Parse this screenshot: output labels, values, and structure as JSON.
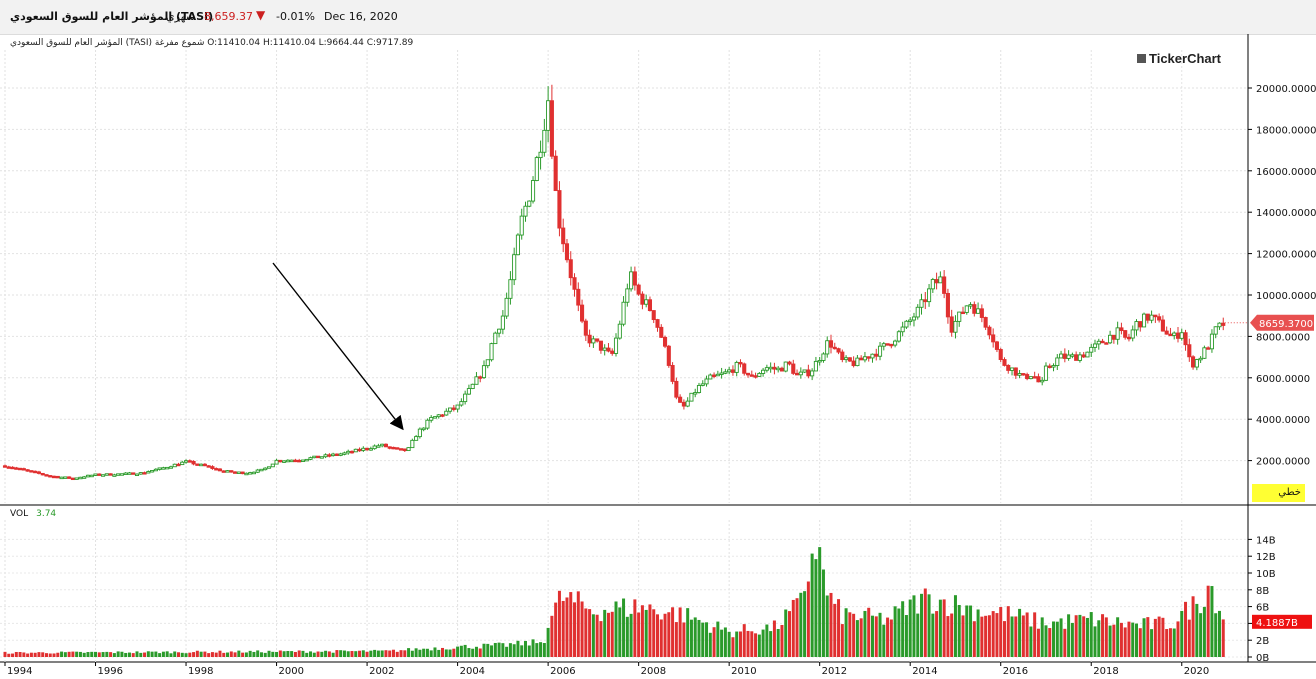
{
  "header": {
    "instrument": "المؤشر العام للسوق السعودي  (TASI)",
    "period": "شهري",
    "last_price": "8,659.37",
    "change": "-0.01%",
    "date": "Dec 16, 2020",
    "change_color": "#cc2020"
  },
  "ohlc_line": "المؤشر العام للسوق السعودي (TASI) شموع مفرغة O:11410.04  H:11410.04  L:9664.44  C:9717.89",
  "logo": "TickerChart",
  "mode_badge": "خطي",
  "volume": {
    "label": "VOL",
    "value": "3.74",
    "current_label": "4.1887B"
  },
  "price_label": "8659.3700",
  "colors": {
    "up": "#2a9a2a",
    "down": "#e03030",
    "price_tag": "#e85050"
  },
  "chart_data": [
    {
      "type": "candlestick",
      "title": "",
      "x_ticks": [
        "1994",
        "1996",
        "1998",
        "2000",
        "2002",
        "2004",
        "2006",
        "2008",
        "2010",
        "2012",
        "2014",
        "2016",
        "2018",
        "2020"
      ],
      "x_range": [
        1994.0,
        2020.95
      ],
      "ylim": [
        0,
        21000
      ],
      "y_ticks": [
        "2000.0000",
        "4000.0000",
        "6000.0000",
        "8000.0000",
        "10000.0000",
        "12000.0000",
        "14000.0000",
        "16000.0000",
        "18000.0000",
        "20000.0000"
      ],
      "grid": true,
      "close_anchors": [
        [
          1994.0,
          1750
        ],
        [
          1994.6,
          1450
        ],
        [
          1995.0,
          1250
        ],
        [
          1995.5,
          1150
        ],
        [
          1996.0,
          1320
        ],
        [
          1996.5,
          1350
        ],
        [
          1997.0,
          1400
        ],
        [
          1997.5,
          1650
        ],
        [
          1998.0,
          1950
        ],
        [
          1998.4,
          1750
        ],
        [
          1998.8,
          1500
        ],
        [
          1999.3,
          1400
        ],
        [
          1999.7,
          1550
        ],
        [
          2000.0,
          2000
        ],
        [
          2000.5,
          2050
        ],
        [
          2001.0,
          2200
        ],
        [
          2001.5,
          2350
        ],
        [
          2002.0,
          2600
        ],
        [
          2002.3,
          2750
        ],
        [
          2002.7,
          2500
        ],
        [
          2002.9,
          2500
        ],
        [
          2003.1,
          3300
        ],
        [
          2003.4,
          4000
        ],
        [
          2003.8,
          4400
        ],
        [
          2004.0,
          4600
        ],
        [
          2004.3,
          5500
        ],
        [
          2004.6,
          6500
        ],
        [
          2004.8,
          8000
        ],
        [
          2005.0,
          9000
        ],
        [
          2005.2,
          11000
        ],
        [
          2005.4,
          13500
        ],
        [
          2005.6,
          15000
        ],
        [
          2005.8,
          17000
        ],
        [
          2006.0,
          19500
        ],
        [
          2006.2,
          14000
        ],
        [
          2006.4,
          12000
        ],
        [
          2006.6,
          10000
        ],
        [
          2006.8,
          8000
        ],
        [
          2007.1,
          7600
        ],
        [
          2007.4,
          7000
        ],
        [
          2007.6,
          8800
        ],
        [
          2007.8,
          11000
        ],
        [
          2008.0,
          10000
        ],
        [
          2008.3,
          9200
        ],
        [
          2008.5,
          8000
        ],
        [
          2008.7,
          6500
        ],
        [
          2008.85,
          4800
        ],
        [
          2009.0,
          4600
        ],
        [
          2009.3,
          5500
        ],
        [
          2009.6,
          6000
        ],
        [
          2009.9,
          6200
        ],
        [
          2010.2,
          6600
        ],
        [
          2010.5,
          6000
        ],
        [
          2010.8,
          6500
        ],
        [
          2011.1,
          6400
        ],
        [
          2011.3,
          6700
        ],
        [
          2011.5,
          6100
        ],
        [
          2011.8,
          6300
        ],
        [
          2012.0,
          7000
        ],
        [
          2012.2,
          7800
        ],
        [
          2012.5,
          6800
        ],
        [
          2012.8,
          6700
        ],
        [
          2013.0,
          7000
        ],
        [
          2013.3,
          7300
        ],
        [
          2013.6,
          7800
        ],
        [
          2013.9,
          8500
        ],
        [
          2014.2,
          9300
        ],
        [
          2014.5,
          10500
        ],
        [
          2014.7,
          10800
        ],
        [
          2014.9,
          8400
        ],
        [
          2015.1,
          9000
        ],
        [
          2015.3,
          9700
        ],
        [
          2015.6,
          8900
        ],
        [
          2015.8,
          8100
        ],
        [
          2016.0,
          6800
        ],
        [
          2016.2,
          6500
        ],
        [
          2016.5,
          6000
        ],
        [
          2016.7,
          6200
        ],
        [
          2016.9,
          5600
        ],
        [
          2017.0,
          6400
        ],
        [
          2017.3,
          7000
        ],
        [
          2017.6,
          7000
        ],
        [
          2017.9,
          7200
        ],
        [
          2018.1,
          7500
        ],
        [
          2018.4,
          8000
        ],
        [
          2018.6,
          8200
        ],
        [
          2018.8,
          7800
        ],
        [
          2019.0,
          8600
        ],
        [
          2019.3,
          9000
        ],
        [
          2019.5,
          8600
        ],
        [
          2019.8,
          7900
        ],
        [
          2020.0,
          8300
        ],
        [
          2020.2,
          6600
        ],
        [
          2020.4,
          7000
        ],
        [
          2020.6,
          7600
        ],
        [
          2020.75,
          8300
        ],
        [
          2020.95,
          8659
        ]
      ]
    },
    {
      "type": "bar",
      "title": "VOL",
      "ylim": [
        0,
        15
      ],
      "y_ticks": [
        "0B",
        "2B",
        "4B",
        "6B",
        "8B",
        "10B",
        "12B",
        "14B"
      ],
      "volume_anchors_billions": [
        [
          1994.0,
          0.5
        ],
        [
          2002.5,
          0.7
        ],
        [
          2003.0,
          0.9
        ],
        [
          2004.0,
          1.2
        ],
        [
          2005.0,
          1.4
        ],
        [
          2005.9,
          1.8
        ],
        [
          2006.0,
          4.0
        ],
        [
          2006.3,
          7.2
        ],
        [
          2007.0,
          5.5
        ],
        [
          2008.0,
          6.0
        ],
        [
          2009.0,
          5.0
        ],
        [
          2010.0,
          3.0
        ],
        [
          2011.0,
          3.5
        ],
        [
          2011.6,
          6.5
        ],
        [
          2011.9,
          14.0
        ],
        [
          2012.2,
          7.0
        ],
        [
          2012.5,
          5.0
        ],
        [
          2013.5,
          4.5
        ],
        [
          2014.3,
          7.0
        ],
        [
          2014.8,
          6.5
        ],
        [
          2015.5,
          5.5
        ],
        [
          2016.2,
          5.0
        ],
        [
          2017.0,
          4.0
        ],
        [
          2018.0,
          4.5
        ],
        [
          2019.0,
          3.8
        ],
        [
          2019.8,
          4.0
        ],
        [
          2020.2,
          6.0
        ],
        [
          2020.4,
          6.5
        ],
        [
          2020.6,
          9.0
        ],
        [
          2020.95,
          4.19
        ]
      ]
    }
  ]
}
